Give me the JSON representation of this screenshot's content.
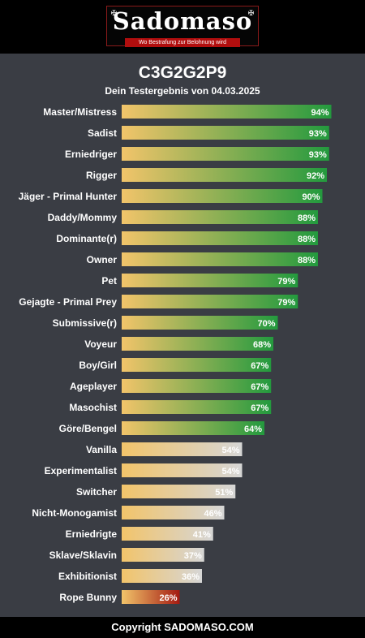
{
  "header": {
    "logo_text": "Sadomaso",
    "tagline": "Wo Bestrafung zur Belohnung wird"
  },
  "title": "C3G2G2P9",
  "subtitle": "Dein Testergebnis von 04.03.2025",
  "footer": "Copyright SADOMASO.COM",
  "colors": {
    "background": "#3a3d44",
    "bar_start": "#f2c46a",
    "bar_high": "#239a3e",
    "bar_mid": "#d6d6d6",
    "bar_low": "#a31a12"
  },
  "chart_data": {
    "type": "bar",
    "orientation": "horizontal",
    "categories": [
      "Master/Mistress",
      "Sadist",
      "Erniedriger",
      "Rigger",
      "Jäger - Primal Hunter",
      "Daddy/Mommy",
      "Dominante(r)",
      "Owner",
      "Pet",
      "Gejagte - Primal Prey",
      "Submissive(r)",
      "Voyeur",
      "Boy/Girl",
      "Ageplayer",
      "Masochist",
      "Göre/Bengel",
      "Vanilla",
      "Experimentalist",
      "Switcher",
      "Nicht-Monogamist",
      "Erniedrigte",
      "Sklave/Sklavin",
      "Exhibitionist",
      "Rope Bunny"
    ],
    "values": [
      94,
      93,
      93,
      92,
      90,
      88,
      88,
      88,
      79,
      79,
      70,
      68,
      67,
      67,
      67,
      64,
      54,
      54,
      51,
      46,
      41,
      37,
      36,
      26
    ],
    "value_labels": [
      "94%",
      "93%",
      "93%",
      "92%",
      "90%",
      "88%",
      "88%",
      "88%",
      "79%",
      "79%",
      "70%",
      "68%",
      "67%",
      "67%",
      "67%",
      "64%",
      "54%",
      "54%",
      "51%",
      "46%",
      "41%",
      "37%",
      "36%",
      "26%"
    ],
    "xlim": [
      0,
      100
    ],
    "grid": false,
    "legend": "none"
  }
}
